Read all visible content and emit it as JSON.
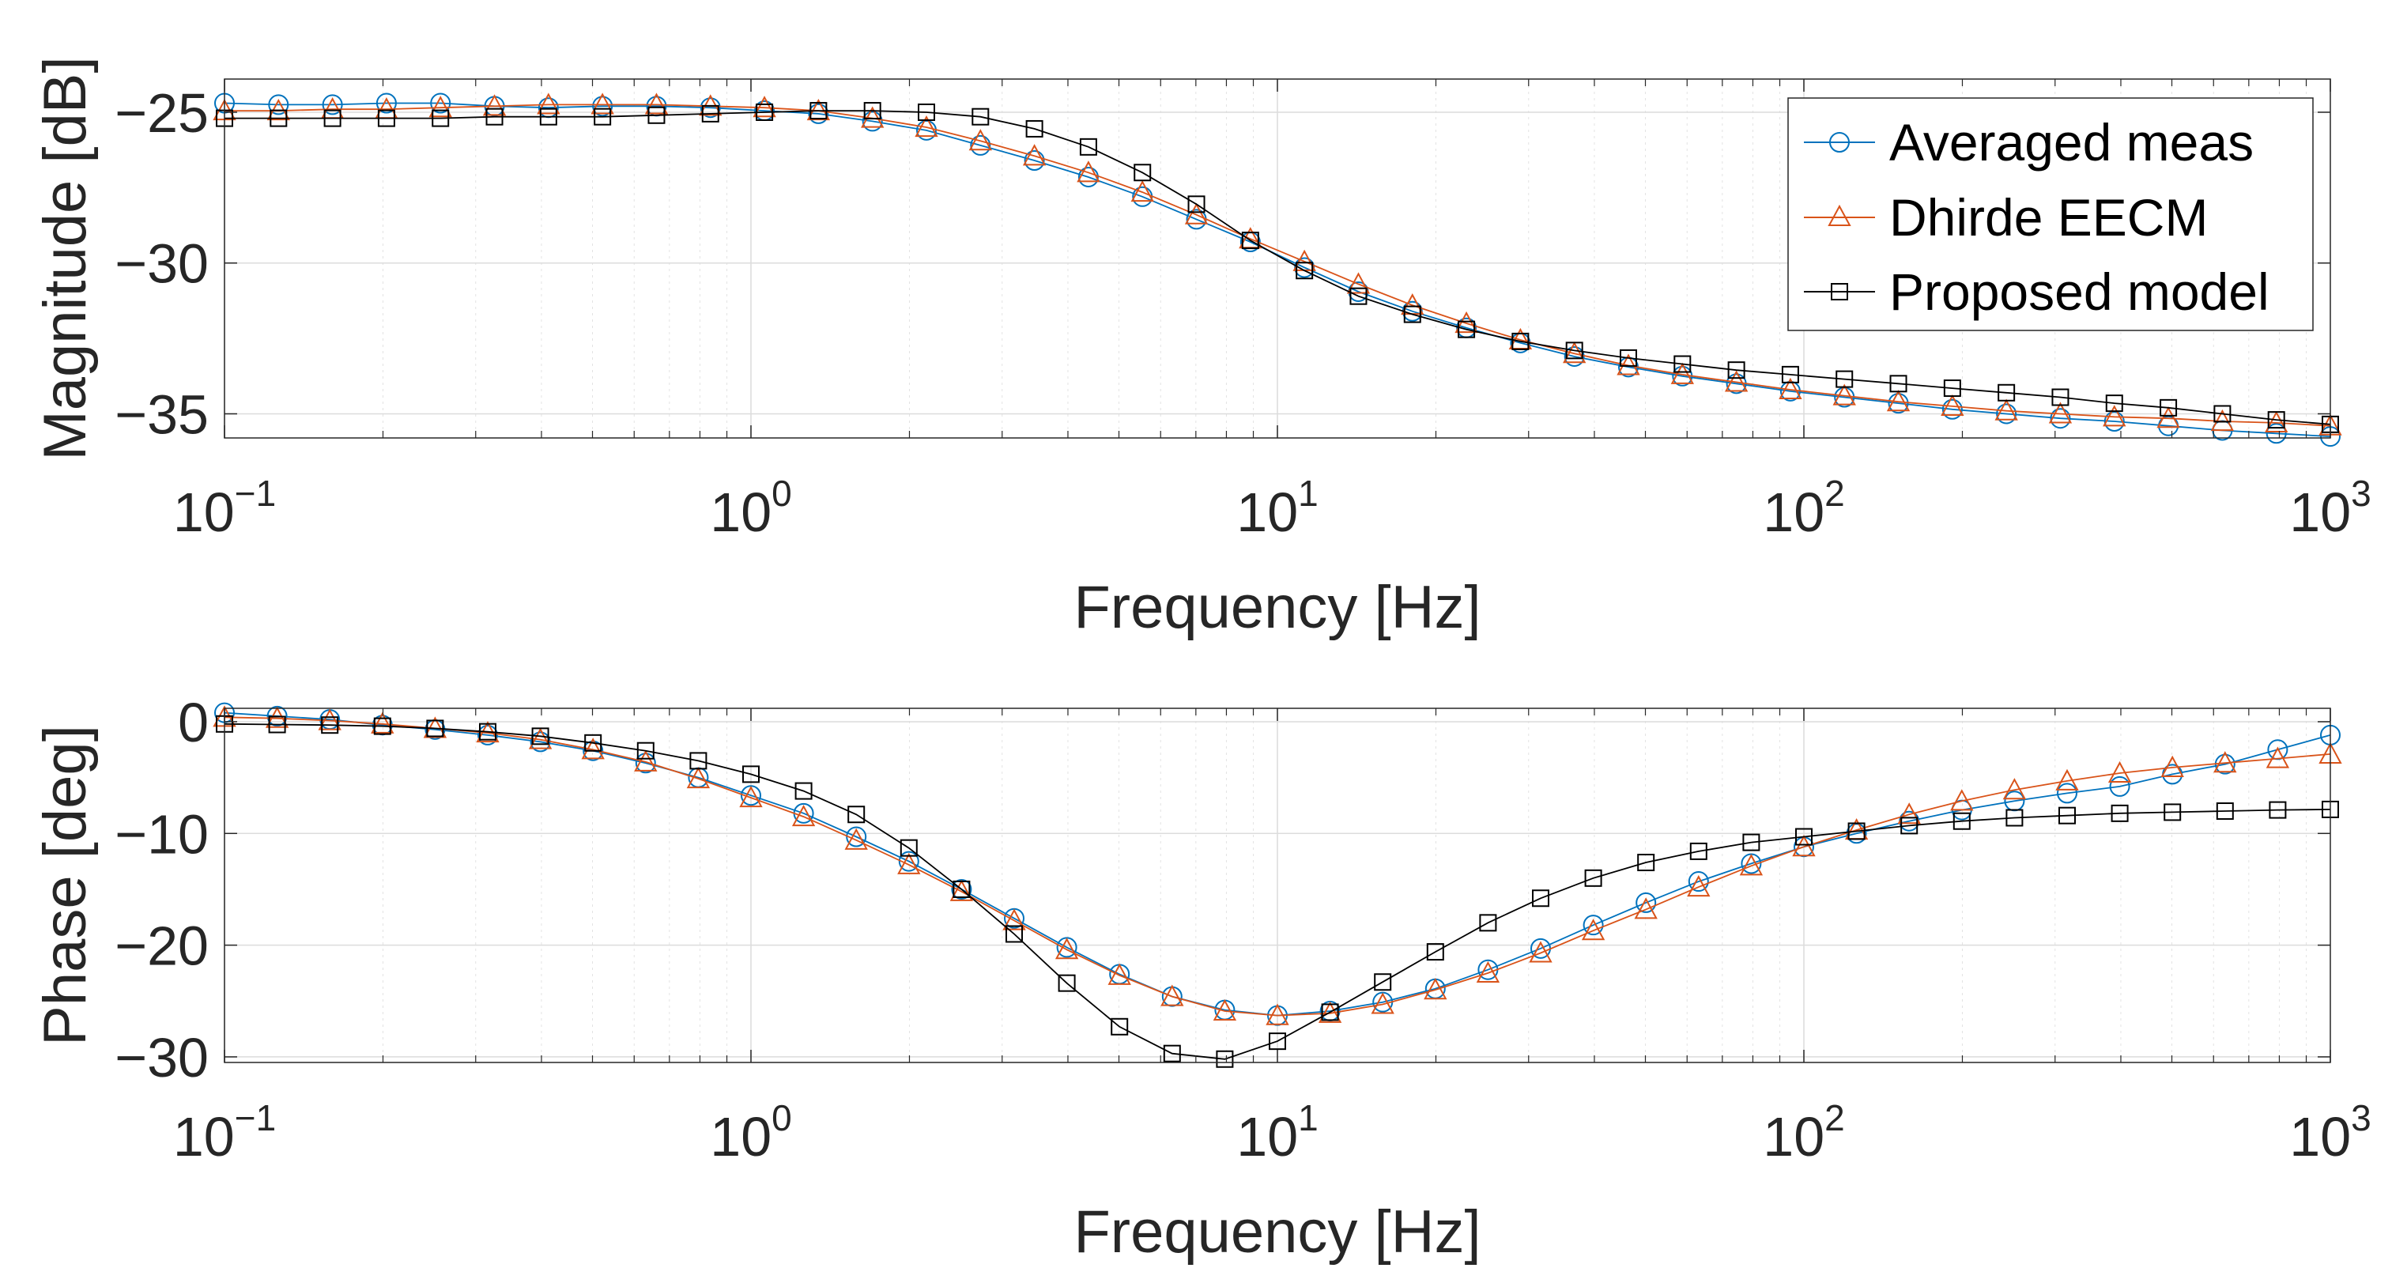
{
  "chart_data": [
    {
      "type": "line",
      "xscale": "log",
      "xlim": [
        0.1,
        1000
      ],
      "ylim": [
        -35.8,
        -23.9
      ],
      "yticks": [
        -25,
        -30,
        -35
      ],
      "ytick_labels": [
        "−25",
        "−30",
        "−35"
      ],
      "xtick_bases": [
        "10",
        "10",
        "10",
        "10",
        "10"
      ],
      "xtick_exps": [
        "−1",
        "0",
        "1",
        "2",
        "3"
      ],
      "xlabel": "Frequency [Hz]",
      "ylabel": "Magnitude [dB]",
      "grid": true,
      "legend_position": "top-right",
      "series": [
        {
          "name": "Averaged meas",
          "marker": "circle",
          "color": "#0072BD",
          "values": [
            -24.7,
            -24.75,
            -24.75,
            -24.7,
            -24.7,
            -24.8,
            -24.85,
            -24.8,
            -24.8,
            -24.85,
            -24.95,
            -25.05,
            -25.3,
            -25.6,
            -26.1,
            -26.6,
            -27.15,
            -27.8,
            -28.55,
            -29.3,
            -30.15,
            -30.95,
            -31.6,
            -32.15,
            -32.65,
            -33.1,
            -33.45,
            -33.75,
            -34.0,
            -34.25,
            -34.45,
            -34.65,
            -34.85,
            -35.0,
            -35.15,
            -35.25,
            -35.4,
            -35.55,
            -35.65,
            -35.75
          ]
        },
        {
          "name": "Dhirde EECM",
          "marker": "triangle",
          "color": "#D95319",
          "values": [
            -24.95,
            -24.95,
            -24.9,
            -24.9,
            -24.85,
            -24.8,
            -24.75,
            -24.75,
            -24.75,
            -24.8,
            -24.85,
            -24.95,
            -25.2,
            -25.5,
            -25.95,
            -26.45,
            -27.0,
            -27.65,
            -28.4,
            -29.2,
            -29.95,
            -30.7,
            -31.4,
            -32.0,
            -32.55,
            -33.0,
            -33.4,
            -33.7,
            -33.95,
            -34.2,
            -34.4,
            -34.6,
            -34.75,
            -34.9,
            -35.0,
            -35.1,
            -35.15,
            -35.25,
            -35.3,
            -35.4
          ]
        },
        {
          "name": "Proposed model",
          "marker": "square",
          "color": "#000000",
          "values": [
            -25.2,
            -25.2,
            -25.2,
            -25.2,
            -25.2,
            -25.15,
            -25.15,
            -25.15,
            -25.1,
            -25.05,
            -25.0,
            -24.95,
            -24.95,
            -25.0,
            -25.15,
            -25.55,
            -26.15,
            -27.0,
            -28.05,
            -29.25,
            -30.25,
            -31.1,
            -31.7,
            -32.2,
            -32.6,
            -32.9,
            -33.15,
            -33.35,
            -33.55,
            -33.7,
            -33.85,
            -34.0,
            -34.15,
            -34.3,
            -34.45,
            -34.65,
            -34.8,
            -35.0,
            -35.2,
            -35.35
          ]
        }
      ]
    },
    {
      "type": "line",
      "xscale": "log",
      "xlim": [
        0.1,
        1000
      ],
      "ylim": [
        -30.5,
        1.2
      ],
      "yticks": [
        0,
        -10,
        -20,
        -30
      ],
      "ytick_labels": [
        "0",
        "−10",
        "−20",
        "−30"
      ],
      "xtick_bases": [
        "10",
        "10",
        "10",
        "10",
        "10"
      ],
      "xtick_exps": [
        "−1",
        "0",
        "1",
        "2",
        "3"
      ],
      "xlabel": "Frequency [Hz]",
      "ylabel": "Phase [deg]",
      "grid": true,
      "series": [
        {
          "name": "Averaged meas",
          "marker": "circle",
          "color": "#0072BD",
          "values": [
            0.8,
            0.5,
            0.2,
            -0.3,
            -0.7,
            -1.2,
            -1.8,
            -2.6,
            -3.7,
            -5.0,
            -6.6,
            -8.2,
            -10.3,
            -12.5,
            -15.0,
            -17.6,
            -20.2,
            -22.6,
            -24.6,
            -25.8,
            -26.3,
            -25.9,
            -25.1,
            -23.9,
            -22.2,
            -20.3,
            -18.2,
            -16.2,
            -14.3,
            -12.7,
            -11.2,
            -10.0,
            -8.9,
            -7.9,
            -7.1,
            -6.4,
            -5.8,
            -4.7,
            -3.8,
            -2.5,
            -1.2
          ]
        },
        {
          "name": "Dhirde EECM",
          "marker": "triangle",
          "color": "#D95319",
          "values": [
            0.4,
            0.3,
            0.1,
            -0.2,
            -0.6,
            -1.0,
            -1.6,
            -2.5,
            -3.6,
            -5.1,
            -6.8,
            -8.5,
            -10.6,
            -12.8,
            -15.2,
            -17.8,
            -20.4,
            -22.7,
            -24.6,
            -25.9,
            -26.3,
            -26.1,
            -25.3,
            -24.0,
            -22.5,
            -20.7,
            -18.7,
            -16.8,
            -14.8,
            -12.9,
            -11.2,
            -9.7,
            -8.3,
            -7.1,
            -6.1,
            -5.3,
            -4.6,
            -4.1,
            -3.7,
            -3.3,
            -2.9
          ]
        },
        {
          "name": "Proposed model",
          "marker": "square",
          "color": "#000000",
          "values": [
            -0.2,
            -0.25,
            -0.3,
            -0.4,
            -0.6,
            -0.9,
            -1.3,
            -1.9,
            -2.6,
            -3.5,
            -4.7,
            -6.2,
            -8.3,
            -11.3,
            -15.0,
            -19.0,
            -23.4,
            -27.3,
            -29.7,
            -30.2,
            -28.6,
            -26.0,
            -23.3,
            -20.6,
            -18.0,
            -15.8,
            -14.0,
            -12.6,
            -11.6,
            -10.8,
            -10.3,
            -9.8,
            -9.3,
            -8.9,
            -8.6,
            -8.4,
            -8.2,
            -8.1,
            -8.0,
            -7.9,
            -7.85
          ]
        }
      ]
    }
  ]
}
